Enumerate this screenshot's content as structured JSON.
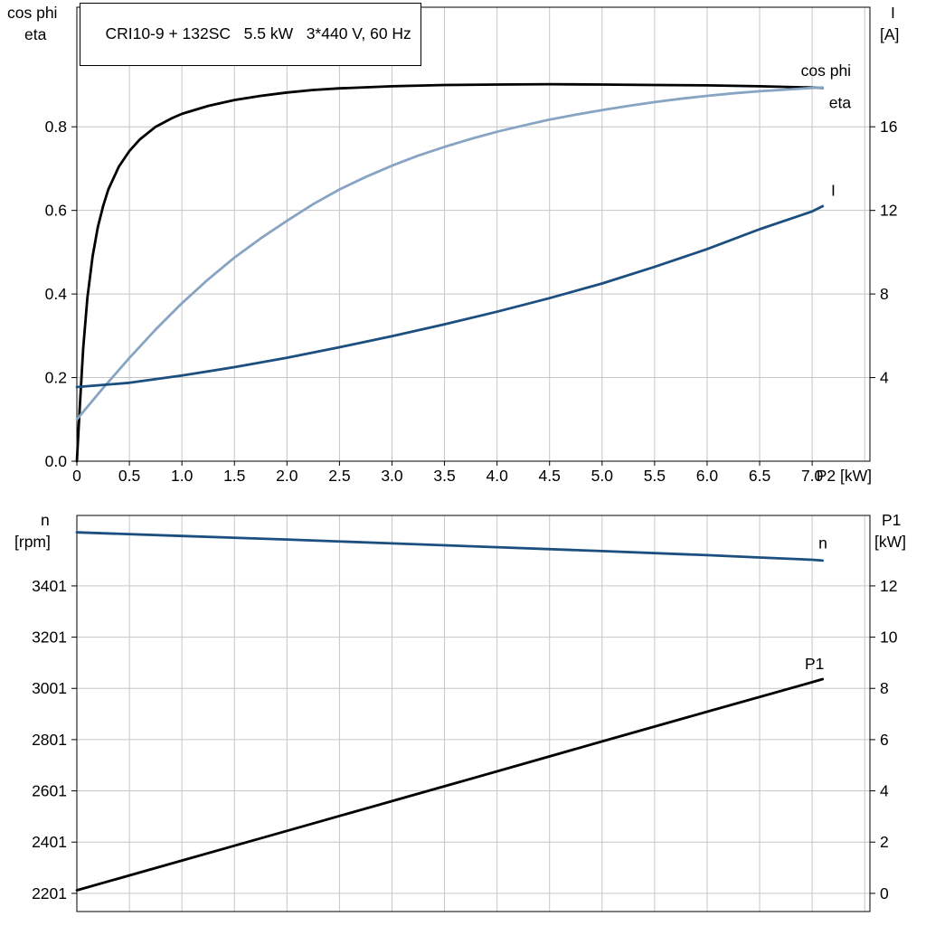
{
  "title_box": {
    "text": "CRI10-9 + 132SC   5.5 kW   3*440 V, 60 Hz"
  },
  "top_chart_headers": {
    "left_line1": "cos phi",
    "left_line2": "eta",
    "right_line1": "I",
    "right_line2": "[A]"
  },
  "bottom_chart_headers": {
    "left_line1": "n",
    "left_line2": "[rpm]",
    "right_line1": "P1",
    "right_line2": "[kW]"
  },
  "colors": {
    "grid": "#c6c6c6",
    "axis": "#000000",
    "eta": "#000000",
    "cos_phi": "#87a5c3",
    "current": "#1c4f80",
    "speed": "#1c4f80",
    "p1": "#000000"
  },
  "chart_data": [
    {
      "type": "line",
      "title": "CRI10-9 + 132SC   5.5 kW   3*440 V, 60 Hz",
      "x_axis": {
        "label": "P2 [kW]",
        "min": 0,
        "max": 7.55,
        "grid": [
          0.5,
          1,
          1.5,
          2,
          2.5,
          3,
          3.5,
          4,
          4.5,
          5,
          5.5,
          6,
          6.5,
          7,
          7.5
        ],
        "ticks": [
          {
            "v": 0,
            "t": "0"
          },
          {
            "v": 0.5,
            "t": "0.5"
          },
          {
            "v": 1,
            "t": "1.0"
          },
          {
            "v": 1.5,
            "t": "1.5"
          },
          {
            "v": 2,
            "t": "2.0"
          },
          {
            "v": 2.5,
            "t": "2.5"
          },
          {
            "v": 3,
            "t": "3.0"
          },
          {
            "v": 3.5,
            "t": "3.5"
          },
          {
            "v": 4,
            "t": "4.0"
          },
          {
            "v": 4.5,
            "t": "4.5"
          },
          {
            "v": 5,
            "t": "5.0"
          },
          {
            "v": 5.5,
            "t": "5.5"
          },
          {
            "v": 6,
            "t": "6.0"
          },
          {
            "v": 6.5,
            "t": "6.5"
          },
          {
            "v": 7,
            "t": "7.0"
          }
        ]
      },
      "y_left": {
        "label": "cos phi / eta",
        "min": 0,
        "max": 1.086,
        "grid": [
          0.2,
          0.4,
          0.6,
          0.8
        ],
        "ticks": [
          {
            "v": 0,
            "t": "0.0"
          },
          {
            "v": 0.2,
            "t": "0.2"
          },
          {
            "v": 0.4,
            "t": "0.4"
          },
          {
            "v": 0.6,
            "t": "0.6"
          },
          {
            "v": 0.8,
            "t": "0.8"
          }
        ]
      },
      "y_right": {
        "label": "I [A]",
        "min": 0,
        "max": 21.72,
        "ticks": [
          {
            "v": 4,
            "t": "4"
          },
          {
            "v": 8,
            "t": "8"
          },
          {
            "v": 12,
            "t": "12"
          },
          {
            "v": 16,
            "t": "16"
          }
        ]
      },
      "series": [
        {
          "name": "eta",
          "color": "#000000",
          "axis": "left",
          "width": 2.8,
          "label": {
            "text": "eta",
            "x": 7.37,
            "y": 0.845,
            "anchor": "end"
          },
          "points": [
            [
              0,
              0
            ],
            [
              0.03,
              0.14
            ],
            [
              0.06,
              0.27
            ],
            [
              0.1,
              0.39
            ],
            [
              0.15,
              0.49
            ],
            [
              0.2,
              0.56
            ],
            [
              0.25,
              0.61
            ],
            [
              0.3,
              0.65
            ],
            [
              0.4,
              0.705
            ],
            [
              0.5,
              0.742
            ],
            [
              0.6,
              0.77
            ],
            [
              0.75,
              0.8
            ],
            [
              0.9,
              0.82
            ],
            [
              1,
              0.831
            ],
            [
              1.25,
              0.85
            ],
            [
              1.5,
              0.864
            ],
            [
              1.75,
              0.874
            ],
            [
              2,
              0.882
            ],
            [
              2.25,
              0.888
            ],
            [
              2.5,
              0.892
            ],
            [
              3,
              0.897
            ],
            [
              3.5,
              0.9
            ],
            [
              4,
              0.901
            ],
            [
              4.5,
              0.902
            ],
            [
              5,
              0.901
            ],
            [
              5.5,
              0.9
            ],
            [
              6,
              0.899
            ],
            [
              6.5,
              0.897
            ],
            [
              7,
              0.894
            ],
            [
              7.1,
              0.893
            ]
          ]
        },
        {
          "name": "cos phi",
          "color": "#87a5c3",
          "axis": "left",
          "width": 2.8,
          "label": {
            "text": "cos phi",
            "x": 7.37,
            "y": 0.922,
            "anchor": "end"
          },
          "points": [
            [
              0,
              0.1
            ],
            [
              0.25,
              0.175
            ],
            [
              0.5,
              0.247
            ],
            [
              0.75,
              0.315
            ],
            [
              1,
              0.378
            ],
            [
              1.25,
              0.435
            ],
            [
              1.5,
              0.487
            ],
            [
              1.75,
              0.533
            ],
            [
              2,
              0.575
            ],
            [
              2.25,
              0.615
            ],
            [
              2.5,
              0.65
            ],
            [
              2.75,
              0.68
            ],
            [
              3,
              0.707
            ],
            [
              3.25,
              0.731
            ],
            [
              3.5,
              0.752
            ],
            [
              3.75,
              0.771
            ],
            [
              4,
              0.788
            ],
            [
              4.25,
              0.803
            ],
            [
              4.5,
              0.817
            ],
            [
              4.75,
              0.829
            ],
            [
              5,
              0.84
            ],
            [
              5.25,
              0.85
            ],
            [
              5.5,
              0.859
            ],
            [
              5.75,
              0.867
            ],
            [
              6,
              0.874
            ],
            [
              6.25,
              0.88
            ],
            [
              6.5,
              0.885
            ],
            [
              6.75,
              0.889
            ],
            [
              7,
              0.893
            ],
            [
              7.1,
              0.894
            ]
          ]
        },
        {
          "name": "I",
          "color": "#1c4f80",
          "axis": "right",
          "width": 2.8,
          "label": {
            "text": "I",
            "x": 7.18,
            "y": 12.7,
            "anchor": "start"
          },
          "points": [
            [
              0,
              3.55
            ],
            [
              0.5,
              3.75
            ],
            [
              1,
              4.1
            ],
            [
              1.5,
              4.5
            ],
            [
              2,
              4.95
            ],
            [
              2.5,
              5.45
            ],
            [
              3,
              5.98
            ],
            [
              3.5,
              6.55
            ],
            [
              4,
              7.15
            ],
            [
              4.5,
              7.8
            ],
            [
              5,
              8.5
            ],
            [
              5.5,
              9.3
            ],
            [
              6,
              10.15
            ],
            [
              6.5,
              11.1
            ],
            [
              7,
              11.95
            ],
            [
              7.1,
              12.2
            ]
          ]
        }
      ]
    },
    {
      "type": "line",
      "title": "",
      "x_axis": {
        "label": "",
        "min": 0,
        "max": 7.55,
        "grid": [
          0.5,
          1,
          1.5,
          2,
          2.5,
          3,
          3.5,
          4,
          4.5,
          5,
          5.5,
          6,
          6.5,
          7,
          7.5
        ],
        "ticks": []
      },
      "y_left": {
        "label": "n [rpm]",
        "min": 2130,
        "max": 3676,
        "grid": [
          2201,
          2401,
          2601,
          2801,
          3001,
          3201,
          3401
        ],
        "ticks": [
          {
            "v": 2201,
            "t": "2201"
          },
          {
            "v": 2401,
            "t": "2401"
          },
          {
            "v": 2601,
            "t": "2601"
          },
          {
            "v": 2801,
            "t": "2801"
          },
          {
            "v": 3001,
            "t": "3001"
          },
          {
            "v": 3201,
            "t": "3201"
          },
          {
            "v": 3401,
            "t": "3401"
          }
        ]
      },
      "y_right": {
        "label": "P1 [kW]",
        "min": -0.71,
        "max": 14.75,
        "ticks": [
          {
            "v": 0,
            "t": "0"
          },
          {
            "v": 2,
            "t": "2"
          },
          {
            "v": 4,
            "t": "4"
          },
          {
            "v": 6,
            "t": "6"
          },
          {
            "v": 8,
            "t": "8"
          },
          {
            "v": 10,
            "t": "10"
          },
          {
            "v": 12,
            "t": "12"
          }
        ]
      },
      "series": [
        {
          "name": "n",
          "color": "#1c4f80",
          "axis": "left",
          "width": 2.8,
          "label": {
            "text": "n",
            "x": 7.06,
            "y": 3548,
            "anchor": "start"
          },
          "points": [
            [
              0,
              3610
            ],
            [
              1,
              3596
            ],
            [
              2,
              3582
            ],
            [
              3,
              3567
            ],
            [
              4,
              3552
            ],
            [
              5,
              3537
            ],
            [
              6,
              3521
            ],
            [
              6.5,
              3512
            ],
            [
              7,
              3503
            ],
            [
              7.1,
              3500
            ]
          ]
        },
        {
          "name": "P1",
          "color": "#000000",
          "axis": "right",
          "width": 2.8,
          "label": {
            "text": "P1",
            "x": 6.93,
            "y": 8.75,
            "anchor": "start"
          },
          "points": [
            [
              0,
              0.12
            ],
            [
              1,
              1.28
            ],
            [
              2,
              2.44
            ],
            [
              3,
              3.6
            ],
            [
              4,
              4.76
            ],
            [
              5,
              5.93
            ],
            [
              6,
              7.09
            ],
            [
              7,
              8.24
            ],
            [
              7.1,
              8.36
            ]
          ]
        }
      ]
    }
  ]
}
